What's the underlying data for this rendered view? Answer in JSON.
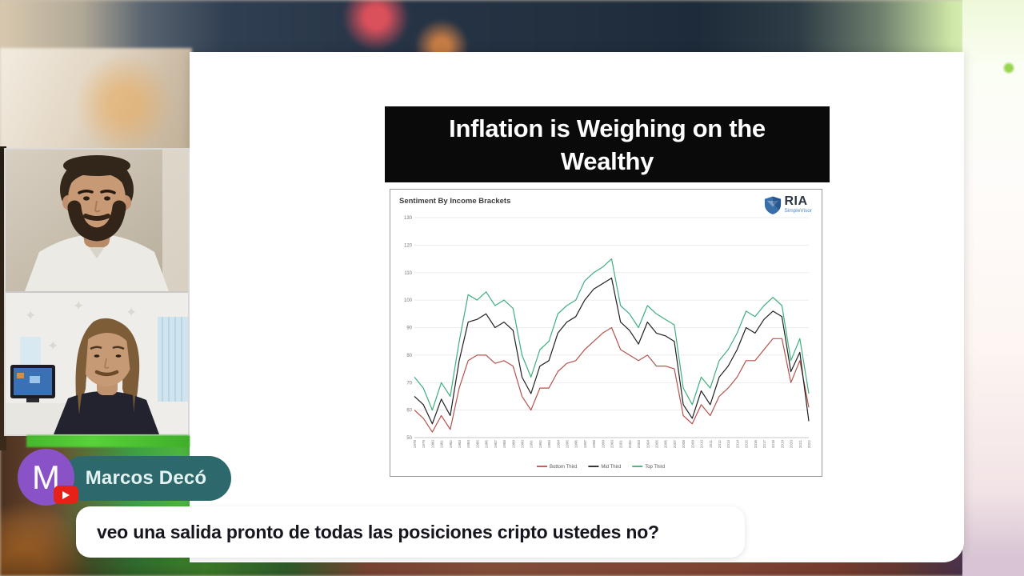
{
  "slide": {
    "title": "Inflation is Weighing on the Wealthy"
  },
  "chart_data": {
    "type": "line",
    "title": "Sentiment By Income Brackets",
    "logo": {
      "text": "RIA",
      "subtext": "SimpleVisor"
    },
    "xlabel": "",
    "ylabel": "",
    "ylim": [
      50,
      130
    ],
    "yticks": [
      50,
      60,
      70,
      80,
      90,
      100,
      110,
      120,
      130
    ],
    "grid": true,
    "legend_position": "bottom",
    "x": [
      1978,
      1979,
      1980,
      1981,
      1982,
      1983,
      1984,
      1985,
      1986,
      1987,
      1988,
      1989,
      1990,
      1991,
      1992,
      1993,
      1994,
      1995,
      1996,
      1997,
      1998,
      1999,
      2000,
      2001,
      2002,
      2003,
      2004,
      2005,
      2006,
      2007,
      2008,
      2009,
      2010,
      2011,
      2012,
      2013,
      2014,
      2015,
      2016,
      2017,
      2018,
      2019,
      2020,
      2021,
      2022
    ],
    "series": [
      {
        "name": "Bottom Third",
        "color": "#b5524c",
        "values": [
          60,
          57,
          52,
          58,
          53,
          68,
          78,
          80,
          80,
          77,
          78,
          76,
          65,
          60,
          68,
          68,
          74,
          77,
          78,
          82,
          85,
          88,
          90,
          82,
          80,
          78,
          80,
          76,
          76,
          75,
          58,
          55,
          62,
          58,
          65,
          68,
          72,
          78,
          78,
          82,
          86,
          86,
          70,
          78,
          61
        ]
      },
      {
        "name": "Mid Third",
        "color": "#1f1f1f",
        "values": [
          65,
          62,
          55,
          64,
          58,
          78,
          92,
          93,
          95,
          90,
          92,
          89,
          72,
          66,
          76,
          78,
          88,
          92,
          94,
          100,
          104,
          106,
          108,
          92,
          89,
          84,
          92,
          88,
          87,
          85,
          62,
          57,
          67,
          62,
          72,
          76,
          82,
          90,
          88,
          93,
          96,
          94,
          74,
          81,
          56
        ]
      },
      {
        "name": "Top Third",
        "color": "#3fae7d",
        "values": [
          72,
          68,
          60,
          70,
          65,
          85,
          102,
          100,
          103,
          98,
          100,
          97,
          80,
          72,
          82,
          85,
          95,
          98,
          100,
          107,
          110,
          112,
          115,
          98,
          95,
          90,
          98,
          95,
          93,
          91,
          68,
          62,
          72,
          68,
          78,
          82,
          88,
          96,
          94,
          98,
          101,
          98,
          78,
          86,
          66
        ]
      }
    ]
  },
  "overlay": {
    "speaker_badge": {
      "initial": "M",
      "name": "Marcos Decó",
      "platform": "youtube",
      "colors": {
        "pill": "#2d696c",
        "avatar": "#8a52c7",
        "youtube": "#e62117"
      }
    },
    "chat_message": {
      "text": "veo una salida pronto de todas las posiciones cripto ustedes no?"
    }
  }
}
